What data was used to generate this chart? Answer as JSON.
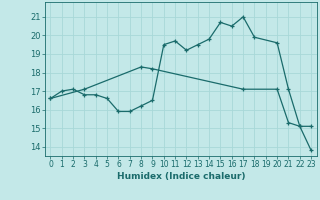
{
  "xlabel": "Humidex (Indice chaleur)",
  "bg_color": "#c3e8e8",
  "line_color": "#1a6b6b",
  "grid_color": "#a8d8d8",
  "xlim": [
    -0.5,
    23.5
  ],
  "ylim": [
    13.5,
    21.8
  ],
  "yticks": [
    14,
    15,
    16,
    17,
    18,
    19,
    20,
    21
  ],
  "xticks": [
    0,
    1,
    2,
    3,
    4,
    5,
    6,
    7,
    8,
    9,
    10,
    11,
    12,
    13,
    14,
    15,
    16,
    17,
    18,
    19,
    20,
    21,
    22,
    23
  ],
  "series1_x": [
    0,
    1,
    2,
    3,
    4,
    5,
    6,
    7,
    8,
    9,
    10,
    11,
    12,
    13,
    14,
    15,
    16,
    17,
    18,
    20,
    21,
    22,
    23
  ],
  "series1_y": [
    16.6,
    17.0,
    17.1,
    16.8,
    16.8,
    16.6,
    15.9,
    15.9,
    16.2,
    16.5,
    19.5,
    19.7,
    19.2,
    19.5,
    19.8,
    20.7,
    20.5,
    21.0,
    19.9,
    19.6,
    17.1,
    15.1,
    15.1
  ],
  "series2_x": [
    0,
    3,
    8,
    9,
    17,
    20,
    21,
    22,
    23
  ],
  "series2_y": [
    16.6,
    17.1,
    18.3,
    18.2,
    17.1,
    17.1,
    15.3,
    15.1,
    13.8
  ]
}
